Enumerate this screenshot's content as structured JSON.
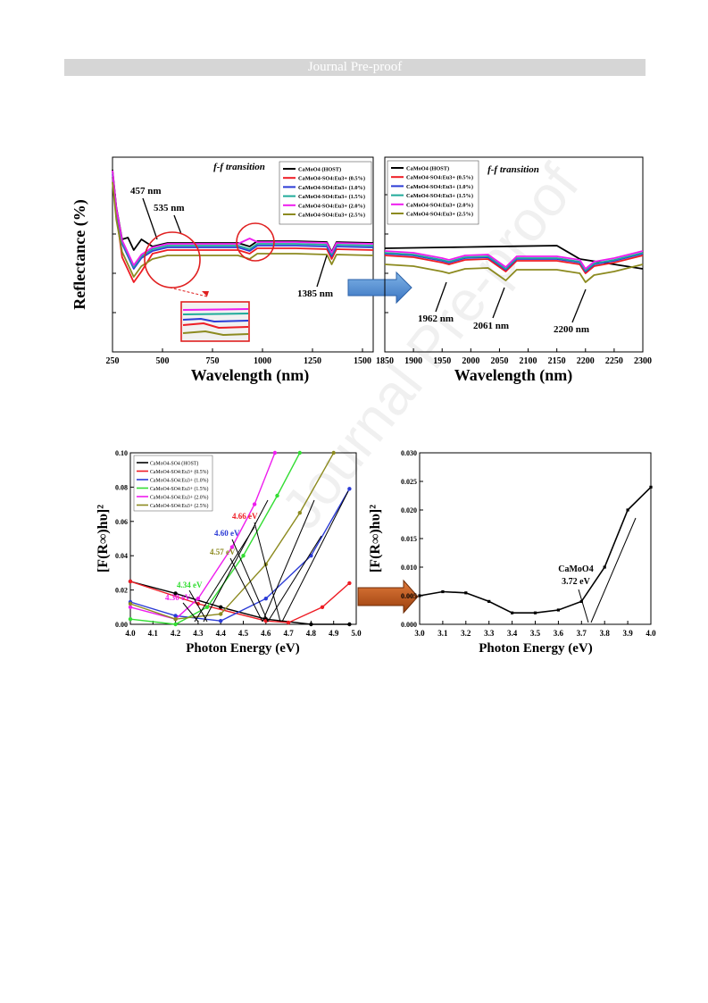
{
  "header": {
    "banner": "Journal Pre-proof"
  },
  "watermark": "Journal Pre-proof",
  "legend_top": [
    "CaMoO4 (HOST)",
    "CaMoO4-SO4:Eu3+ (0.5%)",
    "CaMoO4-SO4:Eu3+ (1.0%)",
    "CaMoO4-SO4:Eu3+ (1.5%)",
    "CaMoO4-SO4:Eu3+ (2.0%)",
    "CaMoO4-SO4:Eu3+ (2.5%)"
  ],
  "legend_bottom": [
    "CaMoO4-SO4 (HOST)",
    "CaMoO4-SO4:Eu3+ (0.5%)",
    "CaMoO4-SO4:Eu3+ (1.0%)",
    "CaMoO4-SO4:Eu3+ (1.5%)",
    "CaMoO4-SO4:Eu3+ (2.0%)",
    "CaMoO4-SO4:Eu3+ (2.5%)"
  ],
  "colors": {
    "host": "#000000",
    "s05": "#ee1c24",
    "s10": "#2b3bd6",
    "s15": "#1faa9a",
    "s20": "#ee1cee",
    "s25": "#8c8a1f",
    "bg": "#ffffff",
    "banner": "#d6d6d6"
  },
  "chart_data": [
    {
      "type": "line",
      "title": "f-f transition",
      "xlabel": "Wavelength (nm)",
      "ylabel": "Reflectance (%)",
      "xlim": [
        250,
        1600
      ],
      "x_ticks": [
        "250",
        "500",
        "750",
        "1000",
        "1250",
        "1500"
      ],
      "annotations": [
        "457 nm",
        "535 nm",
        "1385 nm"
      ],
      "legend": "top-right",
      "series": [
        {
          "name": "CaMoO4 (HOST)",
          "x": [
            250,
            300,
            350,
            457,
            535,
            700,
            900,
            1000,
            1385,
            1600
          ],
          "values": [
            90,
            50,
            60,
            58,
            62,
            62,
            61,
            63,
            62,
            63
          ]
        },
        {
          "name": "CaMoO4-SO4:Eu3+ (0.5%)",
          "x": [
            250,
            300,
            340,
            457,
            535,
            700,
            900,
            1000,
            1385,
            1600
          ],
          "values": [
            80,
            35,
            30,
            52,
            60,
            60,
            60,
            61,
            60,
            61
          ]
        },
        {
          "name": "CaMoO4-SO4:Eu3+ (2.5%)",
          "x": [
            250,
            300,
            350,
            457,
            535,
            700,
            900,
            1000,
            1385,
            1600
          ],
          "values": [
            70,
            35,
            38,
            48,
            55,
            54,
            54,
            56,
            55,
            56
          ]
        }
      ]
    },
    {
      "type": "line",
      "title": "f-f transition",
      "xlabel": "Wavelength (nm)",
      "xlim": [
        1850,
        2300
      ],
      "x_ticks": [
        "1850",
        "1900",
        "1950",
        "2000",
        "2050",
        "2100",
        "2150",
        "2200",
        "2250",
        "2300"
      ],
      "annotations": [
        "1962 nm",
        "2061 nm",
        "2200 nm"
      ],
      "legend": "top-left",
      "series": [
        {
          "name": "CaMoO4 (HOST)",
          "x": [
            1850,
            1950,
            2050,
            2150,
            2200,
            2300
          ],
          "values": [
            63,
            62,
            63,
            64,
            58,
            56
          ]
        },
        {
          "name": "CaMoO4-SO4:Eu3+ (2.5%)",
          "x": [
            1850,
            1962,
            2061,
            2150,
            2200,
            2300
          ],
          "values": [
            50,
            43,
            39,
            48,
            38,
            48
          ]
        }
      ]
    },
    {
      "type": "line",
      "xlabel": "Photon Energy (eV)",
      "ylabel": "[F(R∞)hυ]²",
      "xlim": [
        4.0,
        5.0
      ],
      "ylim": [
        0.0,
        0.1
      ],
      "x_ticks": [
        "4.0",
        "4.1",
        "4.2",
        "4.3",
        "4.4",
        "4.5",
        "4.6",
        "4.7",
        "4.8",
        "4.9",
        "5.0"
      ],
      "y_ticks": [
        "0.00",
        "0.02",
        "0.04",
        "0.06",
        "0.08",
        "0.10"
      ],
      "annotations": [
        "4.66 eV",
        "4.60 eV",
        "4.57 eV",
        "4.34 eV",
        "4.30 eV"
      ],
      "legend": "top-left",
      "series": [
        {
          "name": "CaMoO4-SO4 (HOST)",
          "x": [
            4.0,
            4.2,
            4.4,
            4.6,
            4.8,
            4.97
          ],
          "values": [
            0.025,
            0.018,
            0.01,
            0.003,
            0.0,
            0.0
          ]
        },
        {
          "name": "CaMoO4-SO4:Eu3+ (0.5%)",
          "x": [
            4.0,
            4.3,
            4.6,
            4.7,
            4.85,
            4.97
          ],
          "values": [
            0.025,
            0.012,
            0.002,
            0.001,
            0.01,
            0.024
          ]
        },
        {
          "name": "CaMoO4-SO4:Eu3+ (1.0%)",
          "x": [
            4.0,
            4.2,
            4.4,
            4.6,
            4.8,
            4.97
          ],
          "values": [
            0.013,
            0.005,
            0.002,
            0.015,
            0.04,
            0.079
          ]
        },
        {
          "name": "CaMoO4-SO4:Eu3+ (1.5%)",
          "x": [
            4.0,
            4.2,
            4.34,
            4.5,
            4.65,
            4.75
          ],
          "values": [
            0.003,
            0.0,
            0.01,
            0.04,
            0.075,
            0.1
          ]
        },
        {
          "name": "CaMoO4-SO4:Eu3+ (2.0%)",
          "x": [
            4.0,
            4.2,
            4.3,
            4.45,
            4.55,
            4.64
          ],
          "values": [
            0.01,
            0.003,
            0.015,
            0.045,
            0.07,
            0.1
          ]
        },
        {
          "name": "CaMoO4-SO4:Eu3+ (2.5%)",
          "x": [
            4.0,
            4.2,
            4.4,
            4.6,
            4.75,
            4.9
          ],
          "values": [
            0.012,
            0.003,
            0.006,
            0.035,
            0.065,
            0.1
          ]
        }
      ]
    },
    {
      "type": "line",
      "xlabel": "Photon Energy (eV)",
      "ylabel": "[F(R∞)hυ]²",
      "xlim": [
        3.0,
        4.0
      ],
      "ylim": [
        0.0,
        0.03
      ],
      "x_ticks": [
        "3.0",
        "3.1",
        "3.2",
        "3.3",
        "3.4",
        "3.5",
        "3.6",
        "3.7",
        "3.8",
        "3.9",
        "4.0"
      ],
      "y_ticks": [
        "0.000",
        "0.005",
        "0.010",
        "0.015",
        "0.020",
        "0.025",
        "0.030"
      ],
      "annotations": [
        "CaMoO4",
        "3.72 eV"
      ],
      "series": [
        {
          "name": "CaMoO4",
          "x": [
            3.0,
            3.1,
            3.2,
            3.3,
            3.4,
            3.5,
            3.6,
            3.7,
            3.8,
            3.9,
            4.0
          ],
          "values": [
            0.005,
            0.0057,
            0.0055,
            0.004,
            0.002,
            0.002,
            0.0025,
            0.004,
            0.01,
            0.02,
            0.024
          ]
        }
      ]
    }
  ]
}
